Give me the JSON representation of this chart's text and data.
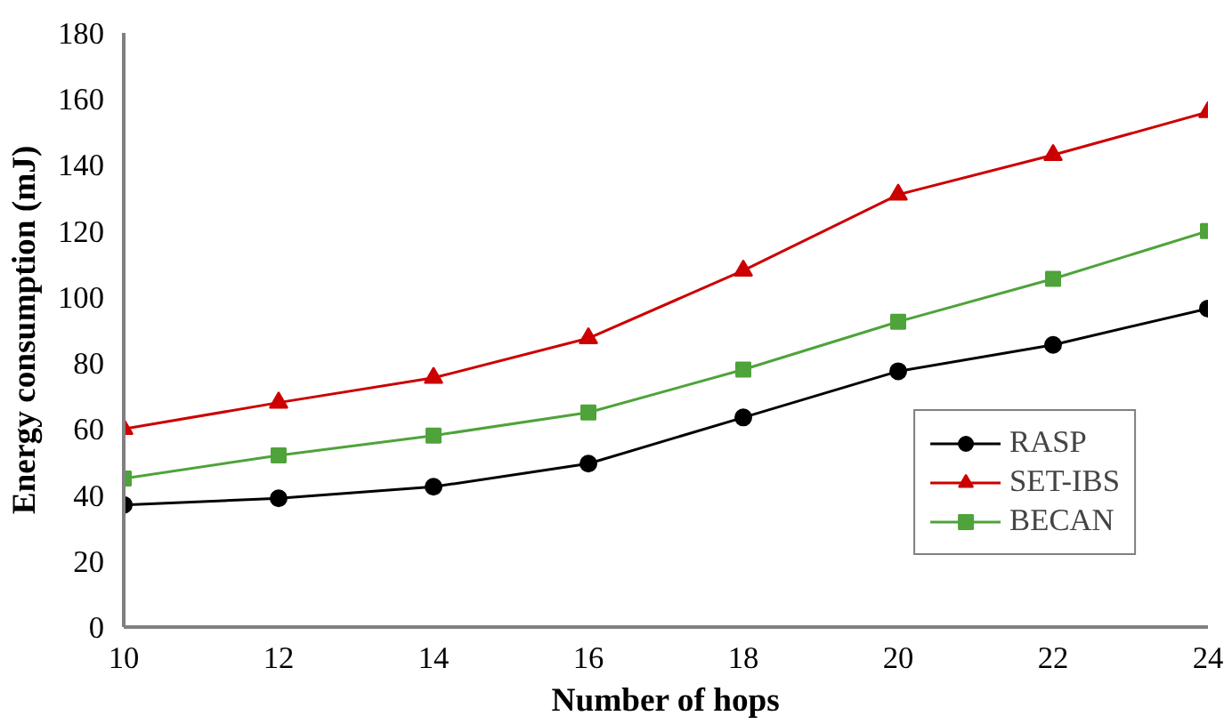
{
  "chart_data": {
    "type": "line",
    "xlabel": "Number of hops",
    "ylabel": "Energy consumption (mJ)",
    "x": [
      10,
      12,
      14,
      16,
      18,
      20,
      22,
      24
    ],
    "xlim": [
      10,
      24
    ],
    "xticks": [
      10,
      12,
      14,
      16,
      18,
      20,
      22,
      24
    ],
    "ylim": [
      0,
      180
    ],
    "yticks": [
      0,
      20,
      40,
      60,
      80,
      100,
      120,
      140,
      160,
      180
    ],
    "grid": false,
    "legend": "bottom right",
    "line_style": "solid",
    "series": [
      {
        "name": "RASP",
        "color": "#000000",
        "marker": "circle",
        "values": [
          37,
          39,
          42.5,
          49.5,
          63.5,
          77.5,
          85.5,
          96.5
        ]
      },
      {
        "name": "SET-IBS",
        "color": "#cc0000",
        "marker": "triangle",
        "values": [
          60,
          68,
          75.5,
          87.5,
          108,
          131,
          143,
          156
        ]
      },
      {
        "name": "BECAN",
        "color": "#4ea33a",
        "marker": "square",
        "values": [
          45,
          52,
          58,
          65,
          78,
          92.5,
          105.5,
          120
        ]
      }
    ]
  }
}
